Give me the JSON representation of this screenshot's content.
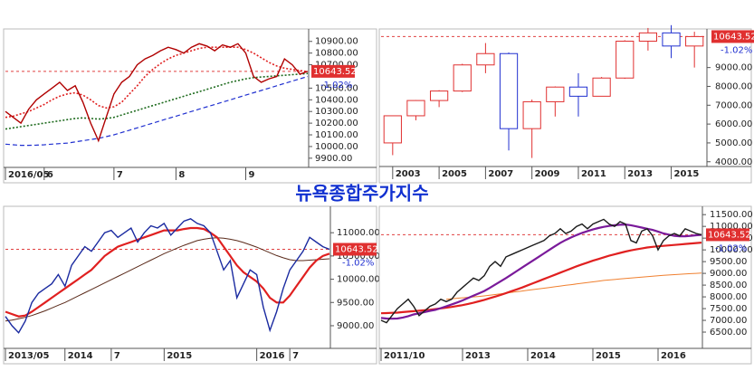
{
  "title": "뉴욕종합주가지수",
  "chart_data": [
    {
      "type": "line",
      "last_price": 10643.52,
      "change_label": "-1.02%",
      "xlim": [
        0,
        39
      ],
      "ylim": [
        9860,
        10960
      ],
      "xticks": [
        {
          "value": 0,
          "label": "2016/05"
        },
        {
          "value": 5,
          "label": "6"
        },
        {
          "value": 14,
          "label": "7"
        },
        {
          "value": 22,
          "label": "8"
        },
        {
          "value": 31,
          "label": "9"
        }
      ],
      "yticks": [
        {
          "value": 9900,
          "label": "9900.00"
        },
        {
          "value": 10000,
          "label": "10000.00"
        },
        {
          "value": 10100,
          "label": "10100.00"
        },
        {
          "value": 10200,
          "label": "10200.00"
        },
        {
          "value": 10300,
          "label": "10300.00"
        },
        {
          "value": 10400,
          "label": "10400.00"
        },
        {
          "value": 10500,
          "label": "10500.00"
        },
        {
          "value": 10700,
          "label": "10700.00"
        },
        {
          "value": 10800,
          "label": "10800.00"
        },
        {
          "value": 10900,
          "label": "10900.00"
        }
      ],
      "series": [
        {
          "color": "#2030d0",
          "style": "dashed",
          "values": [
            10020,
            10015,
            10010,
            10010,
            10012,
            10015,
            10020,
            10025,
            10030,
            10040,
            10050,
            10060,
            10070,
            10085,
            10100,
            10120,
            10140,
            10160,
            10180,
            10200,
            10220,
            10240,
            10260,
            10280,
            10300,
            10320,
            10340,
            10360,
            10380,
            10400,
            10420,
            10440,
            10460,
            10480,
            10500,
            10520,
            10540,
            10560,
            10580,
            10600
          ]
        },
        {
          "color": "#1e6b1e",
          "style": "dotted",
          "values": [
            10150,
            10160,
            10170,
            10180,
            10190,
            10200,
            10210,
            10220,
            10230,
            10240,
            10245,
            10240,
            10235,
            10240,
            10250,
            10270,
            10290,
            10310,
            10330,
            10350,
            10370,
            10390,
            10410,
            10430,
            10450,
            10470,
            10490,
            10510,
            10530,
            10550,
            10565,
            10580,
            10590,
            10595,
            10600,
            10605,
            10610,
            10615,
            10620,
            10625
          ]
        },
        {
          "color": "#e02020",
          "style": "dotted",
          "values": [
            10250,
            10260,
            10280,
            10300,
            10330,
            10360,
            10400,
            10430,
            10450,
            10460,
            10440,
            10400,
            10350,
            10330,
            10340,
            10380,
            10450,
            10520,
            10600,
            10660,
            10710,
            10750,
            10780,
            10800,
            10820,
            10840,
            10850,
            10850,
            10850,
            10850,
            10850,
            10830,
            10800,
            10760,
            10720,
            10690,
            10670,
            10660,
            10650,
            10640
          ]
        },
        {
          "color": "#b00000",
          "style": "solid",
          "values": [
            10300,
            10250,
            10200,
            10320,
            10400,
            10450,
            10500,
            10550,
            10480,
            10520,
            10380,
            10200,
            10050,
            10250,
            10450,
            10550,
            10600,
            10700,
            10750,
            10780,
            10820,
            10850,
            10830,
            10800,
            10850,
            10880,
            10860,
            10820,
            10870,
            10850,
            10880,
            10800,
            10600,
            10550,
            10580,
            10600,
            10750,
            10700,
            10620,
            10643.52
          ]
        }
      ]
    },
    {
      "type": "candlestick",
      "last_price": 10643.52,
      "change_label": "-1.02%",
      "xlim": [
        -0.5,
        13.5
      ],
      "ylim": [
        3700,
        10760
      ],
      "xticks": [
        {
          "value": 0,
          "label": "2003"
        },
        {
          "value": 2,
          "label": "2005"
        },
        {
          "value": 4,
          "label": "2007"
        },
        {
          "value": 6,
          "label": "2009"
        },
        {
          "value": 8,
          "label": "2011"
        },
        {
          "value": 10,
          "label": "2013"
        },
        {
          "value": 12,
          "label": "2015"
        }
      ],
      "yticks": [
        {
          "value": 4000,
          "label": "4000.00"
        },
        {
          "value": 5000,
          "label": "5000.00"
        },
        {
          "value": 6000,
          "label": "6000.00"
        },
        {
          "value": 7000,
          "label": "7000.00"
        },
        {
          "value": 8000,
          "label": "8000.00"
        },
        {
          "value": 9000,
          "label": "9000.00"
        }
      ],
      "up_color": "#e03030",
      "down_color": "#2030d0",
      "open": [
        5000,
        6440,
        7250,
        7754,
        9139,
        9740,
        5757,
        7185,
        7964,
        7477,
        8443,
        10400,
        10839,
        10143
      ],
      "high": [
        6450,
        7270,
        7800,
        9200,
        10300,
        9800,
        7300,
        8000,
        8700,
        8500,
        10450,
        11100,
        11250,
        10900
      ],
      "low": [
        4350,
        6200,
        6900,
        7700,
        8700,
        4600,
        4200,
        6400,
        6400,
        7500,
        8400,
        9900,
        9500,
        9000
      ],
      "close": [
        6440,
        7250,
        7754,
        9139,
        9740,
        5757,
        7185,
        7964,
        7477,
        8443,
        10400,
        10839,
        10143,
        10643.52
      ]
    },
    {
      "type": "line",
      "last_price": 10643.52,
      "change_label": "-1.02%",
      "xlim": [
        0,
        49
      ],
      "ylim": [
        8610,
        11490
      ],
      "xticks": [
        {
          "value": 0,
          "label": "2013/05"
        },
        {
          "value": 9,
          "label": "2014"
        },
        {
          "value": 16,
          "label": "7"
        },
        {
          "value": 24,
          "label": "2015"
        },
        {
          "value": 38,
          "label": "2016"
        },
        {
          "value": 43,
          "label": "7"
        }
      ],
      "yticks": [
        {
          "value": 9000,
          "label": "9000.00"
        },
        {
          "value": 9500,
          "label": "9500.00"
        },
        {
          "value": 10000,
          "label": "10000.00"
        },
        {
          "value": 10500,
          "label": "10500.00"
        },
        {
          "value": 11000,
          "label": "11000.00"
        }
      ],
      "series": [
        {
          "color": "#5a2a1a",
          "style": "thin",
          "values": [
            9100,
            9120,
            9150,
            9180,
            9220,
            9270,
            9320,
            9380,
            9440,
            9500,
            9570,
            9640,
            9710,
            9780,
            9850,
            9920,
            9990,
            10060,
            10130,
            10200,
            10270,
            10340,
            10410,
            10480,
            10550,
            10610,
            10670,
            10730,
            10780,
            10830,
            10860,
            10880,
            10890,
            10880,
            10860,
            10830,
            10790,
            10740,
            10690,
            10630,
            10570,
            10510,
            10460,
            10420,
            10400,
            10400,
            10410,
            10420,
            10430,
            10440
          ]
        },
        {
          "color": "#e02020",
          "style": "thick",
          "values": [
            9300,
            9250,
            9200,
            9220,
            9300,
            9400,
            9500,
            9600,
            9700,
            9800,
            9900,
            10000,
            10100,
            10200,
            10350,
            10500,
            10600,
            10700,
            10750,
            10800,
            10850,
            10900,
            10950,
            11000,
            11050,
            11050,
            11050,
            11080,
            11100,
            11100,
            11080,
            11000,
            10900,
            10700,
            10500,
            10300,
            10150,
            10050,
            9950,
            9800,
            9600,
            9500,
            9500,
            9650,
            9850,
            10050,
            10250,
            10400,
            10500,
            10550
          ]
        },
        {
          "color": "#1a2aa0",
          "style": "solid",
          "values": [
            9200,
            9000,
            8850,
            9100,
            9500,
            9700,
            9800,
            9900,
            10100,
            9850,
            10300,
            10500,
            10700,
            10600,
            10800,
            11000,
            11050,
            10900,
            11000,
            11100,
            10800,
            11000,
            11150,
            11100,
            11200,
            10950,
            11100,
            11250,
            11300,
            11200,
            11150,
            11000,
            10600,
            10200,
            10400,
            9600,
            9900,
            10200,
            10100,
            9400,
            8900,
            9300,
            9800,
            10200,
            10400,
            10600,
            10900,
            10800,
            10700,
            10643.52
          ]
        }
      ]
    },
    {
      "type": "line",
      "last_price": 10643.52,
      "change_label": "-1.02%",
      "xlim": [
        0,
        59
      ],
      "ylim": [
        6000,
        11700
      ],
      "xticks": [
        {
          "value": 0,
          "label": "2011/10"
        },
        {
          "value": 15,
          "label": "2013"
        },
        {
          "value": 27,
          "label": "2014"
        },
        {
          "value": 39,
          "label": "2015"
        },
        {
          "value": 51,
          "label": "2016"
        }
      ],
      "yticks": [
        {
          "value": 6500,
          "label": "6500.00"
        },
        {
          "value": 7000,
          "label": "7000.00"
        },
        {
          "value": 7500,
          "label": "7500.00"
        },
        {
          "value": 8000,
          "label": "8000.00"
        },
        {
          "value": 8500,
          "label": "8500.00"
        },
        {
          "value": 9000,
          "label": "9000.00"
        },
        {
          "value": 9500,
          "label": "9500.00"
        },
        {
          "value": 10000,
          "label": "10000.00"
        },
        {
          "value": 10500,
          "label": "10500.00"
        },
        {
          "value": 11000,
          "label": "11000.00"
        },
        {
          "value": 11500,
          "label": "11500.00"
        }
      ],
      "series": [
        {
          "color": "#f08030",
          "style": "thin",
          "values": [
            null,
            null,
            null,
            null,
            null,
            null,
            null,
            null,
            null,
            null,
            null,
            null,
            7900,
            7920,
            7940,
            7960,
            7980,
            8000,
            8020,
            8040,
            8070,
            8100,
            8130,
            8160,
            8190,
            8220,
            8250,
            8280,
            8310,
            8340,
            8370,
            8400,
            8430,
            8460,
            8490,
            8520,
            8550,
            8580,
            8610,
            8640,
            8670,
            8700,
            8720,
            8740,
            8760,
            8780,
            8800,
            8820,
            8840,
            8860,
            8880,
            8900,
            8915,
            8930,
            8945,
            8960,
            8975,
            8990,
            9000,
            9010
          ]
        },
        {
          "color": "#e02020",
          "style": "thick",
          "values": [
            7300,
            7310,
            7320,
            7330,
            7350,
            7370,
            7390,
            7410,
            7430,
            7450,
            7480,
            7510,
            7540,
            7570,
            7610,
            7650,
            7700,
            7750,
            7810,
            7870,
            7940,
            8010,
            8080,
            8160,
            8240,
            8320,
            8400,
            8490,
            8580,
            8670,
            8760,
            8850,
            8940,
            9030,
            9120,
            9210,
            9300,
            9380,
            9460,
            9540,
            9610,
            9680,
            9750,
            9810,
            9870,
            9930,
            9980,
            10020,
            10060,
            10100,
            10130,
            10150,
            10170,
            10190,
            10210,
            10230,
            10250,
            10270,
            10290,
            10310
          ]
        },
        {
          "color": "#7a1a9a",
          "style": "thick",
          "values": [
            7100,
            7080,
            7070,
            7080,
            7120,
            7180,
            7250,
            7300,
            7350,
            7400,
            7450,
            7520,
            7600,
            7680,
            7760,
            7850,
            7950,
            8050,
            8150,
            8250,
            8380,
            8520,
            8660,
            8800,
            8950,
            9100,
            9250,
            9400,
            9550,
            9700,
            9850,
            10000,
            10150,
            10300,
            10420,
            10530,
            10630,
            10720,
            10800,
            10870,
            10930,
            10980,
            11020,
            11050,
            11070,
            11080,
            11050,
            11000,
            10950,
            10900,
            10850,
            10780,
            10700,
            10650,
            10600,
            10580,
            10580,
            10600,
            10620,
            10640
          ]
        },
        {
          "color": "#1a1a1a",
          "style": "solid",
          "values": [
            7000,
            6900,
            7200,
            7500,
            7700,
            7900,
            7600,
            7200,
            7400,
            7600,
            7700,
            7900,
            7800,
            7900,
            8200,
            8400,
            8600,
            8800,
            8700,
            8900,
            9300,
            9500,
            9300,
            9700,
            9800,
            9900,
            10000,
            10100,
            10200,
            10300,
            10400,
            10600,
            10700,
            10900,
            10700,
            10800,
            11000,
            11100,
            10900,
            11100,
            11200,
            11300,
            11100,
            11000,
            11200,
            11100,
            10400,
            10300,
            10800,
            10900,
            10600,
            10000,
            10400,
            10600,
            10700,
            10600,
            10900,
            10800,
            10700,
            10643.52
          ]
        }
      ]
    }
  ]
}
